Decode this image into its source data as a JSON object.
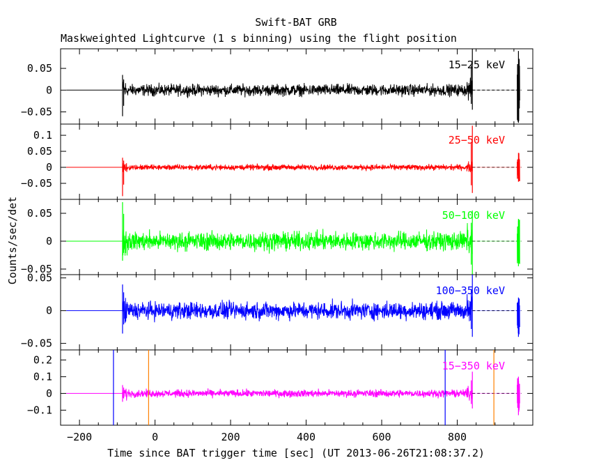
{
  "chart_data": {
    "type": "line",
    "title": "Swift-BAT GRB",
    "subtitle": "Maskweighted Lightcurve (1 s binning) using the flight position",
    "xlabel": "Time since BAT trigger time [sec] (UT 2013-06-26T21:08:37.2)",
    "ylabel": "Counts/sec/det",
    "xlim": [
      -250,
      1000
    ],
    "xticks": [
      -200,
      0,
      200,
      400,
      600,
      800
    ],
    "data_x_range": [
      -86,
      840
    ],
    "late_burst_x": 962,
    "panels": [
      {
        "name": "15-25 keV",
        "label": "15−25 keV",
        "color": "#000000",
        "ylim": [
          -0.078,
          0.095
        ],
        "yticks": [
          0.05,
          0,
          -0.05
        ],
        "yticklabels": [
          "0.05",
          "0",
          "−0.05"
        ],
        "noise_amplitude": 0.012,
        "edge_spikes": {
          "start": [
            0.035,
            -0.06
          ],
          "end": [
            0.095,
            -0.045
          ],
          "late": [
            0.09,
            -0.075
          ]
        }
      },
      {
        "name": "25-50 keV",
        "label": "25−50 keV",
        "color": "#ff0000",
        "ylim": [
          -0.1,
          0.135
        ],
        "yticks": [
          0.1,
          0.05,
          0,
          -0.05
        ],
        "yticklabels": [
          "0.1",
          "0.05",
          "0",
          "−0.05"
        ],
        "noise_amplitude": 0.008,
        "edge_spikes": {
          "start": [
            0.03,
            -0.09
          ],
          "end": [
            0.13,
            -0.08
          ],
          "late": [
            0.045,
            -0.045
          ]
        }
      },
      {
        "name": "50-100 keV",
        "label": "50−100 keV",
        "color": "#00ff00",
        "ylim": [
          -0.06,
          0.075
        ],
        "yticks": [
          0.05,
          0,
          -0.05
        ],
        "yticklabels": [
          "0.05",
          "0",
          "−0.05"
        ],
        "noise_amplitude": 0.015,
        "edge_spikes": {
          "start": [
            0.07,
            -0.035
          ],
          "end": [
            0.055,
            -0.06
          ],
          "late": [
            0.04,
            -0.045
          ]
        }
      },
      {
        "name": "100-350 keV",
        "label": "100−350 keV",
        "color": "#0000ff",
        "ylim": [
          -0.06,
          0.055
        ],
        "yticks": [
          0.05,
          0,
          -0.05
        ],
        "yticklabels": [
          "0.05",
          "0",
          "−0.05"
        ],
        "noise_amplitude": 0.012,
        "edge_spikes": {
          "start": [
            0.04,
            -0.035
          ],
          "end": [
            0.055,
            -0.04
          ],
          "late": [
            0.02,
            -0.04
          ]
        }
      },
      {
        "name": "15-350 keV",
        "label": "15−350 keV",
        "color": "#ff00ff",
        "ylim": [
          -0.19,
          0.26
        ],
        "yticks": [
          0.2,
          0.1,
          0,
          -0.1
        ],
        "yticklabels": [
          "0.2",
          "0.1",
          "0",
          "−0.1"
        ],
        "noise_amplitude": 0.02,
        "edge_spikes": {
          "start": [
            0.05,
            -0.05
          ],
          "end": [
            0.13,
            -0.09
          ],
          "late": [
            0.1,
            -0.13
          ]
        },
        "markers": [
          {
            "x": -110,
            "color": "#0000ff"
          },
          {
            "x": -17,
            "color": "#ff8000"
          },
          {
            "x": 768,
            "color": "#0000ff"
          },
          {
            "x": 897,
            "color": "#ff8000"
          }
        ]
      }
    ]
  }
}
